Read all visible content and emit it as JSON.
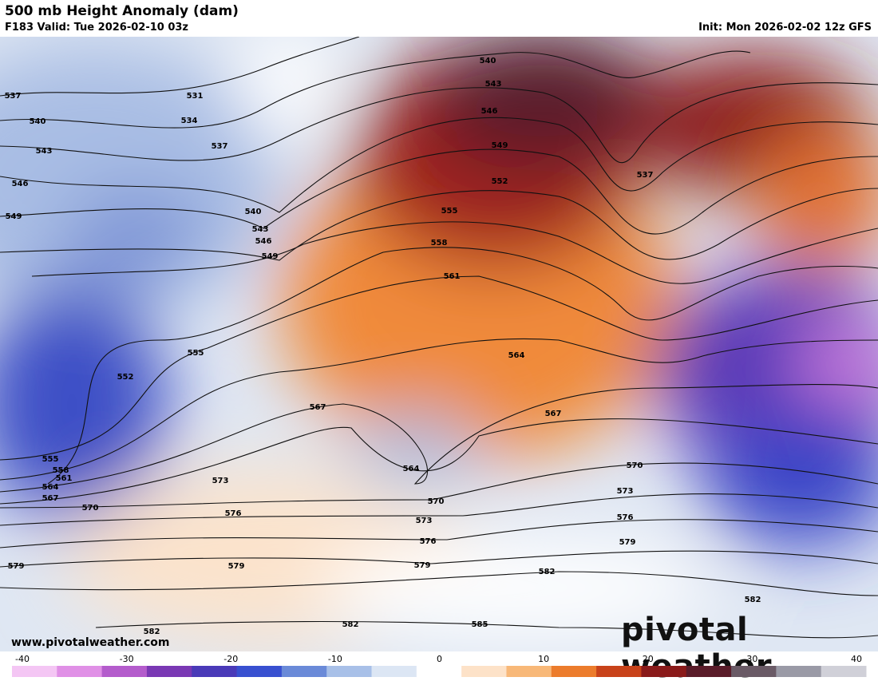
{
  "header": {
    "title": "500 mb Height Anomaly (dam)",
    "valid": "F183 Valid: Tue 2026-02-10 03z",
    "init": "Init: Mon 2026-02-02 12z GFS"
  },
  "map": {
    "contour_labels": [
      537,
      540,
      543,
      546,
      549,
      531,
      534,
      537,
      540,
      543,
      546,
      549,
      555,
      552,
      567,
      564,
      570,
      573,
      576,
      579,
      573,
      576,
      579,
      579,
      555,
      558,
      561,
      564,
      567,
      570,
      582,
      582,
      585,
      582,
      582,
      579,
      576,
      573,
      570,
      567,
      564,
      561,
      558,
      555,
      552,
      549,
      546,
      543,
      540,
      537
    ]
  },
  "footer": {
    "website": "www.pivotalweather.com",
    "brand": "pivotal weather"
  },
  "colorbar": {
    "ticks": [
      -40,
      -30,
      -20,
      -10,
      0,
      10,
      20,
      30,
      40
    ],
    "colors": [
      "#f4c6f4",
      "#e090e6",
      "#b45ccc",
      "#7a38b4",
      "#4a3ab8",
      "#3850d0",
      "#6a8ad8",
      "#a8c0e8",
      "#dce6f4",
      "#ffffff",
      "#fde2c8",
      "#f8b878",
      "#ec7c2c",
      "#c8421a",
      "#8a1a1a",
      "#5a1c2a",
      "#6a5a66",
      "#9a9aa6",
      "#d0d0d8"
    ]
  }
}
